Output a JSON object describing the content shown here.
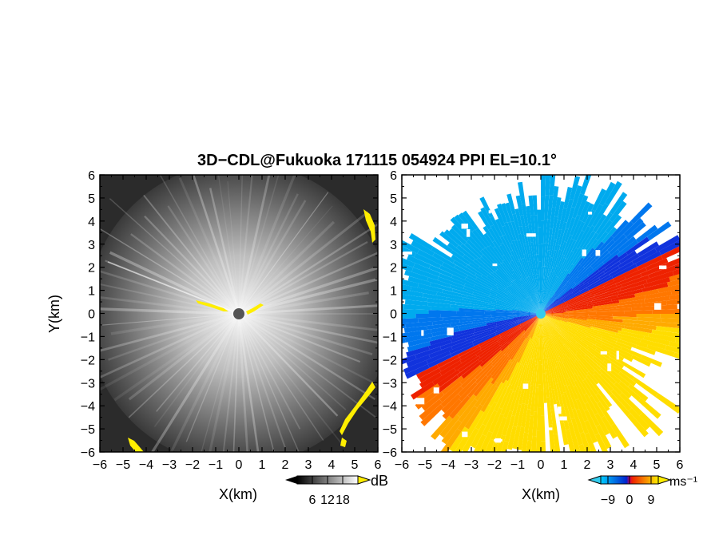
{
  "chart_data": [
    {
      "type": "heatmap",
      "panel": "left",
      "title": "3D−CDL@Fukuoka 171115 054924 PPI EL=10.1°",
      "xlabel": "X(km)",
      "ylabel": "Y(km)",
      "xlim": [
        -6,
        6
      ],
      "ylim": [
        -6,
        6
      ],
      "x_ticks": [
        "−6",
        "−5",
        "−4",
        "−3",
        "−2",
        "−1",
        "0",
        "1",
        "2",
        "3",
        "4",
        "5",
        "6"
      ],
      "y_ticks": [
        "6",
        "5",
        "4",
        "3",
        "2",
        "1",
        "0",
        "−1",
        "−2",
        "−3",
        "−4",
        "−5",
        "−6"
      ],
      "colorbar": {
        "unit": "dB",
        "ticks": [
          "6",
          "12",
          "18"
        ],
        "range": [
          0,
          24
        ]
      },
      "colors": {
        "low": "#1a1a1a",
        "high": "#f2f2f2",
        "saturation": "#ffee00",
        "center": "#555555"
      }
    },
    {
      "type": "heatmap",
      "panel": "right",
      "xlabel": "X(km)",
      "xlim": [
        -6,
        6
      ],
      "ylim": [
        -6,
        6
      ],
      "x_ticks": [
        "−6",
        "−5",
        "−4",
        "−3",
        "−2",
        "−1",
        "0",
        "1",
        "2",
        "3",
        "4",
        "5",
        "6"
      ],
      "y_ticks": [
        "6",
        "5",
        "4",
        "3",
        "2",
        "1",
        "0",
        "−1",
        "−2",
        "−3",
        "−4",
        "−5",
        "−6"
      ],
      "colorbar": {
        "unit": "ms⁻¹",
        "ticks": [
          "−9",
          "0",
          "9"
        ],
        "range": [
          -12,
          12
        ]
      },
      "colors": {
        "negative_far": "#00aaee",
        "negative_near": "#1133dd",
        "zero": "#cc0066",
        "positive_near": "#ee2200",
        "positive_far": "#ffdd00",
        "center": "#33ccee"
      }
    }
  ]
}
